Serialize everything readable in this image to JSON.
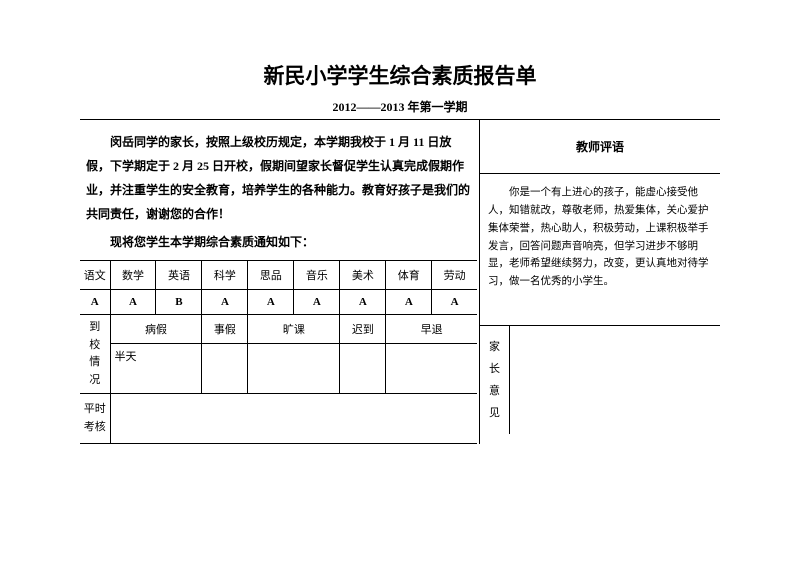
{
  "title": "新民小学学生综合素质报告单",
  "subtitle": "2012——2013 年第一学期",
  "notice": "闵岳同学的家长，按照上级校历规定，本学期我校于 1 月 11 日放假，下学期定于 2 月 25 日开校，假期间望家长督促学生认真完成假期作业，并注重学生的安全教育，培养学生的各种能力。教育好孩子是我们的共同责任，谢谢您的合作！",
  "notice_line2": "现将您学生本学期综合素质通知如下：",
  "subjects": [
    "语文",
    "数学",
    "英语",
    "科学",
    "思品",
    "音乐",
    "美术",
    "体育",
    "劳动"
  ],
  "grades": [
    "A",
    "A",
    "B",
    "A",
    "A",
    "A",
    "A",
    "A",
    "A"
  ],
  "attendance_row_label": "到校情况",
  "attendance_headers": [
    "病假",
    "事假",
    "旷课",
    "迟到",
    "早退"
  ],
  "attendance_values": [
    "半天",
    "",
    "",
    "",
    ""
  ],
  "usual_label": "平时考核",
  "teacher_header": "教师评语",
  "teacher_comment": "你是一个有上进心的孩子，能虚心接受他人，知错就改，尊敬老师，热爱集体，关心爱护集体荣誉，热心助人，积极劳动，上课积极举手发言，回答问题声音响亮，但学习进步不够明显，老师希望继续努力，改变，更认真地对待学习，做一名优秀的小学生。",
  "parent_label": "家长意见"
}
